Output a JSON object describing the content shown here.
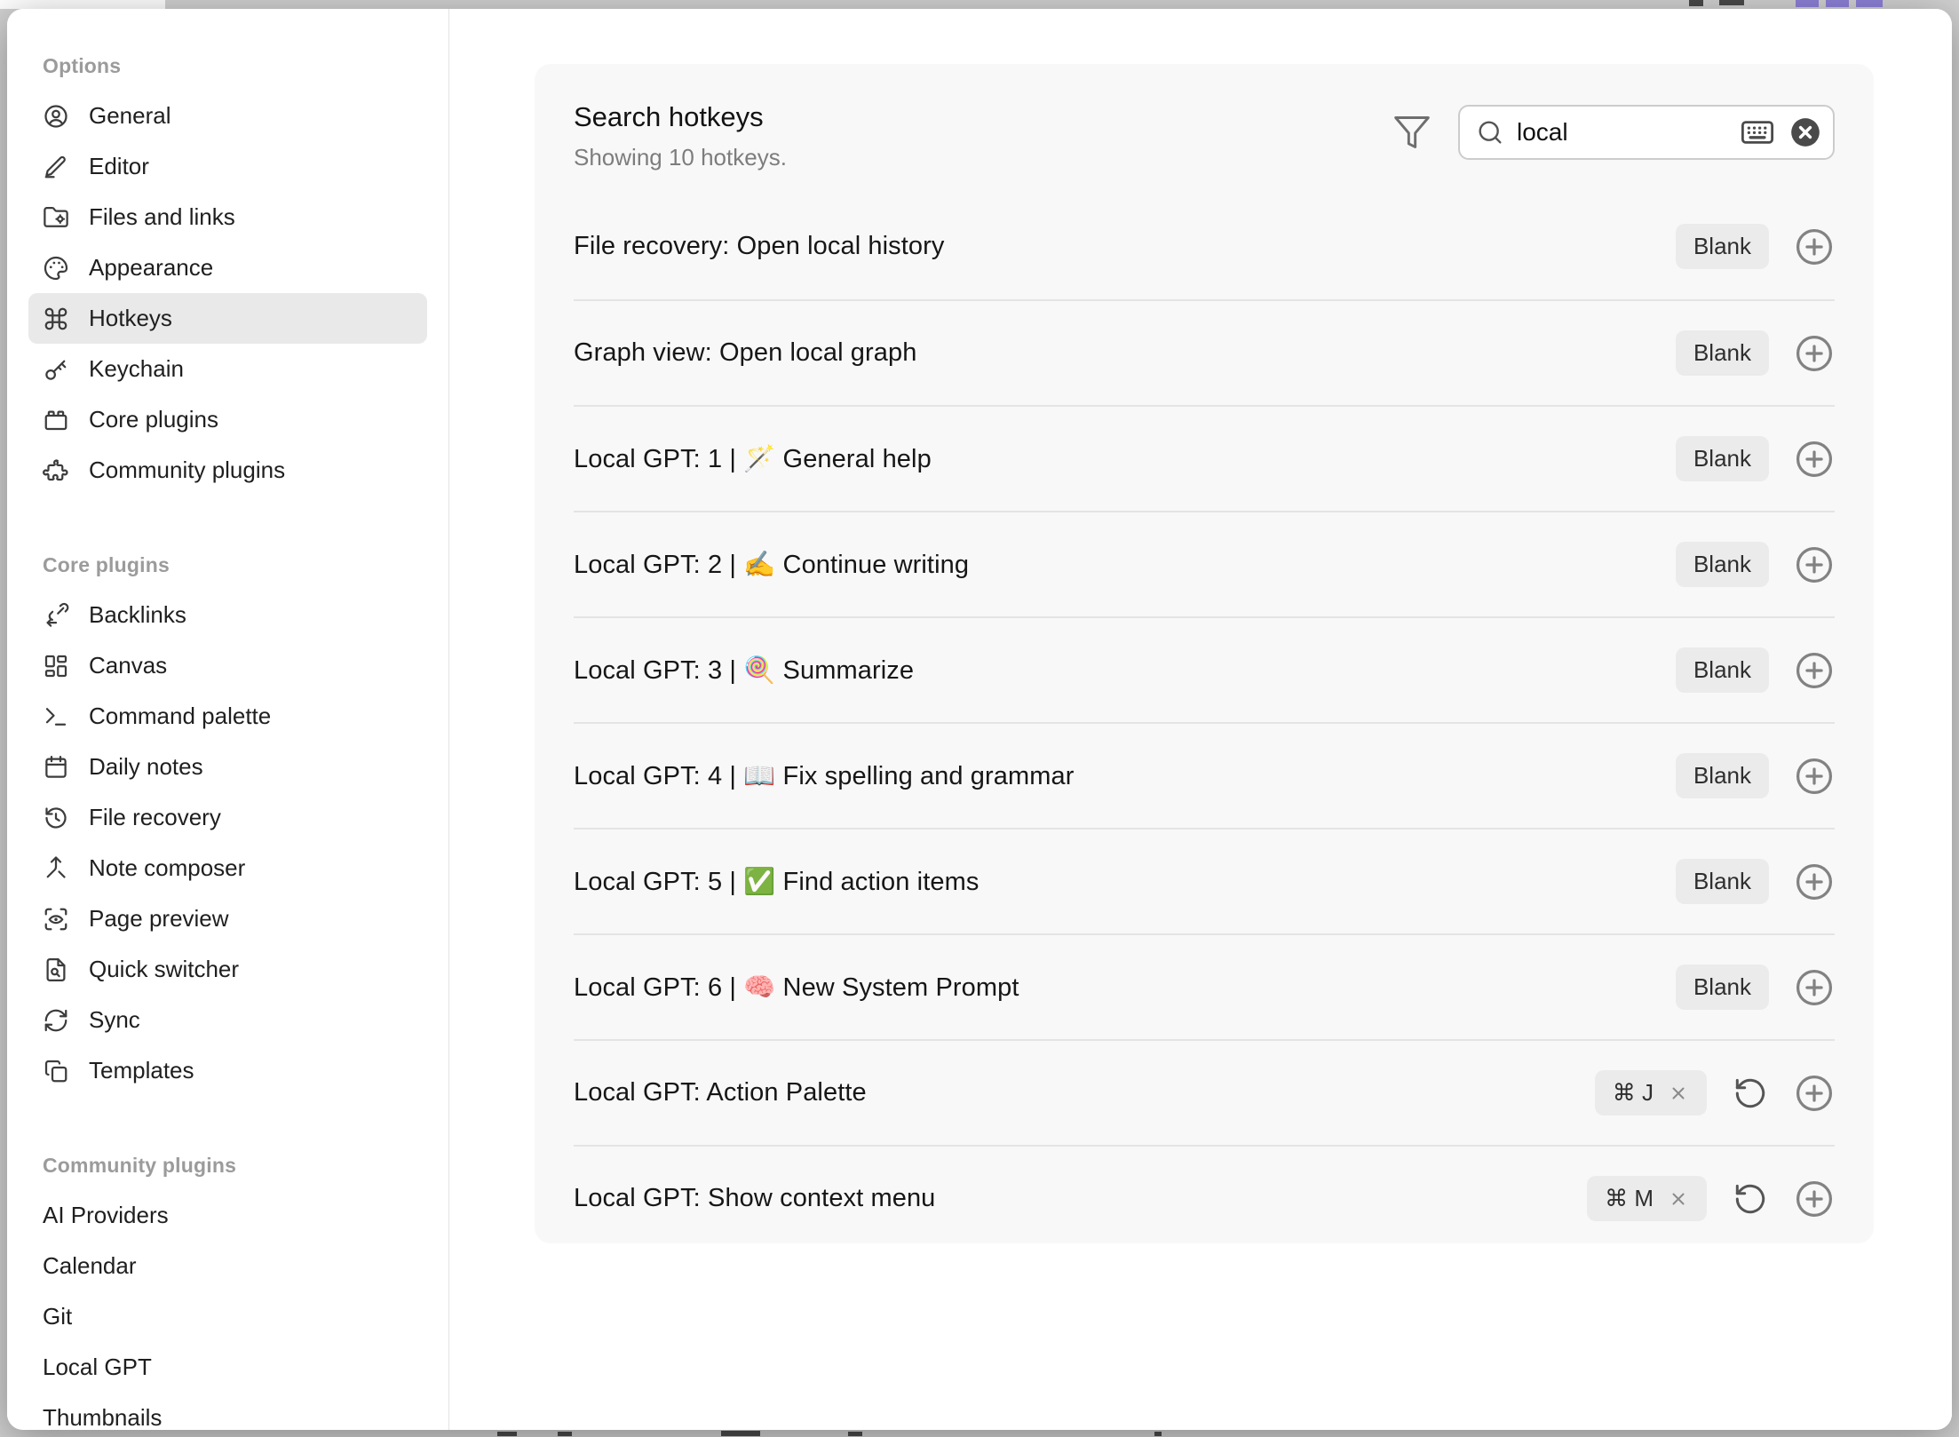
{
  "colors": {
    "app_background": "#d1d1d1",
    "modal_background": "#ffffff",
    "card_background": "#f8f8f8",
    "selected_item_background": "#e9e9e9",
    "badge_background": "#ebebeb",
    "heading_gray": "#9b9b9b",
    "background_fragment_accent": "#8d80d8"
  },
  "sidebar": {
    "sections": [
      {
        "heading": "Options",
        "items": [
          {
            "label": "General",
            "icon": "user-circle-icon"
          },
          {
            "label": "Editor",
            "icon": "pen-icon"
          },
          {
            "label": "Files and links",
            "icon": "folder-gear-icon"
          },
          {
            "label": "Appearance",
            "icon": "palette-icon"
          },
          {
            "label": "Hotkeys",
            "icon": "command-icon",
            "selected": true
          },
          {
            "label": "Keychain",
            "icon": "key-icon"
          },
          {
            "label": "Core plugins",
            "icon": "toy-brick-icon"
          },
          {
            "label": "Community plugins",
            "icon": "puzzle-icon"
          }
        ]
      },
      {
        "heading": "Core plugins",
        "items": [
          {
            "label": "Backlinks",
            "icon": "backlink-icon"
          },
          {
            "label": "Canvas",
            "icon": "layout-dashboard-icon"
          },
          {
            "label": "Command palette",
            "icon": "terminal-icon"
          },
          {
            "label": "Daily notes",
            "icon": "calendar-icon"
          },
          {
            "label": "File recovery",
            "icon": "history-icon"
          },
          {
            "label": "Note composer",
            "icon": "merge-icon"
          },
          {
            "label": "Page preview",
            "icon": "scan-eye-icon"
          },
          {
            "label": "Quick switcher",
            "icon": "file-search-icon"
          },
          {
            "label": "Sync",
            "icon": "refresh-icon"
          },
          {
            "label": "Templates",
            "icon": "copy-files-icon"
          }
        ]
      },
      {
        "heading": "Community plugins",
        "items": [
          {
            "label": "AI Providers"
          },
          {
            "label": "Calendar"
          },
          {
            "label": "Git"
          },
          {
            "label": "Local GPT"
          },
          {
            "label": "Thumbnails"
          }
        ]
      }
    ]
  },
  "main": {
    "title": "Search hotkeys",
    "subtitle": "Showing 10 hotkeys.",
    "search": {
      "value": "local",
      "filter_icon": "filter-icon",
      "search_icon": "search-icon",
      "keyboard_icon": "keyboard-icon",
      "clear_icon": "clear-circle-icon"
    },
    "rows": [
      {
        "label": "File recovery: Open local history",
        "hotkey": "Blank",
        "assigned": false
      },
      {
        "label": "Graph view: Open local graph",
        "hotkey": "Blank",
        "assigned": false
      },
      {
        "label": "Local GPT: 1 | 🪄 General help",
        "hotkey": "Blank",
        "assigned": false
      },
      {
        "label": "Local GPT: 2 | ✍️ Continue writing",
        "hotkey": "Blank",
        "assigned": false
      },
      {
        "label": "Local GPT: 3 | 🍭 Summarize",
        "hotkey": "Blank",
        "assigned": false
      },
      {
        "label": "Local GPT: 4 | 📖 Fix spelling and grammar",
        "hotkey": "Blank",
        "assigned": false
      },
      {
        "label": "Local GPT: 5 | ✅ Find action items",
        "hotkey": "Blank",
        "assigned": false
      },
      {
        "label": "Local GPT: 6 | 🧠 New System Prompt",
        "hotkey": "Blank",
        "assigned": false
      },
      {
        "label": "Local GPT: Action Palette",
        "hotkey": "⌘ J",
        "assigned": true
      },
      {
        "label": "Local GPT: Show context menu",
        "hotkey": "⌘ M",
        "assigned": true
      }
    ]
  }
}
